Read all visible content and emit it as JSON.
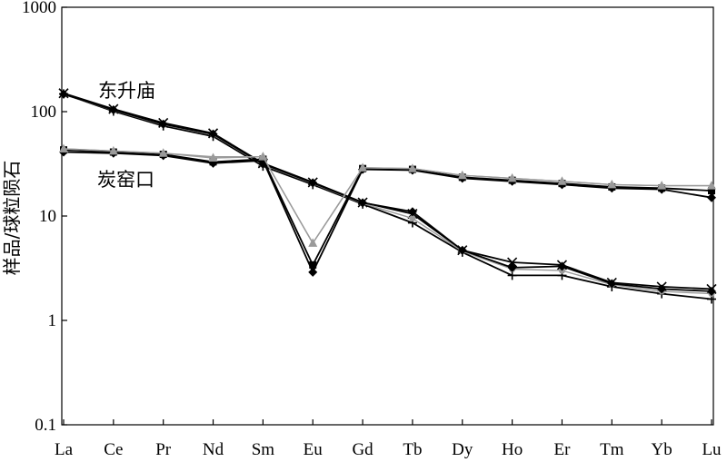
{
  "chart_data": {
    "type": "line",
    "yscale": "log",
    "ylim": [
      0.1,
      1000
    ],
    "yticks": [
      {
        "value": 1000,
        "label": "1000"
      },
      {
        "value": 100,
        "label": "100"
      },
      {
        "value": 10,
        "label": "10"
      },
      {
        "value": 1,
        "label": "1"
      },
      {
        "value": 0.1,
        "label": "0.1"
      }
    ],
    "ylabel": "样品/球粒陨石",
    "xlabel": "",
    "grid": false,
    "categories": [
      "La",
      "Ce",
      "Pr",
      "Nd",
      "Sm",
      "Eu",
      "Gd",
      "Tb",
      "Dy",
      "Ho",
      "Er",
      "Tm",
      "Yb",
      "Lu"
    ],
    "annotations": [
      {
        "text": "东升庙",
        "series_group": "dongshengmiao"
      },
      {
        "text": "炭窑口",
        "series_group": "tanyaokou"
      }
    ],
    "series": [
      {
        "group": "dongshengmiao",
        "marker": "x",
        "color": "#000000",
        "values": [
          150,
          106,
          78,
          62,
          32,
          21,
          13.5,
          10.5,
          4.7,
          3.6,
          3.4,
          2.3,
          2.1,
          2.0
        ]
      },
      {
        "group": "dongshengmiao",
        "marker": "plus",
        "color": "#000000",
        "values": [
          148,
          101,
          73,
          58,
          30,
          20,
          13,
          8.6,
          4.5,
          2.7,
          2.7,
          2.1,
          1.8,
          1.6
        ]
      },
      {
        "group": "dongshengmiao",
        "marker": "circle",
        "color": "#9a9a9a",
        "values": [
          146,
          103,
          75,
          60,
          31,
          20.5,
          13.2,
          9.5,
          4.6,
          3.1,
          3.0,
          2.2,
          1.9,
          1.8
        ]
      },
      {
        "group": "dongshengmiao",
        "marker": "diamond",
        "color": "#000000",
        "values": [
          147,
          104,
          76,
          61,
          31.5,
          20.8,
          13.4,
          11,
          4.7,
          3.2,
          3.3,
          2.25,
          2.0,
          1.9
        ]
      },
      {
        "group": "tanyaokou",
        "marker": "diamond",
        "color": "#000000",
        "values": [
          41,
          40,
          38,
          32,
          34,
          2.9,
          28,
          27.5,
          23,
          21.5,
          20,
          18.5,
          18,
          15
        ]
      },
      {
        "group": "tanyaokou",
        "marker": "square",
        "color": "#000000",
        "values": [
          43,
          41,
          39,
          33,
          35,
          3.4,
          28.5,
          28,
          23.5,
          22,
          20.5,
          19,
          18.5,
          17.5
        ]
      },
      {
        "group": "tanyaokou",
        "marker": "triangle",
        "color": "#9a9a9a",
        "values": [
          44,
          42,
          40,
          36,
          37,
          5.5,
          29,
          28.5,
          24.5,
          23,
          21.5,
          20,
          19.5,
          19.5
        ]
      },
      {
        "group": "tanyaokou",
        "marker": "none",
        "color": "#9a9a9a",
        "values": [
          44,
          42,
          40,
          37,
          37,
          5.5,
          29,
          28.5,
          24.5,
          23,
          21.5,
          20,
          19.5,
          19.5
        ]
      }
    ]
  }
}
